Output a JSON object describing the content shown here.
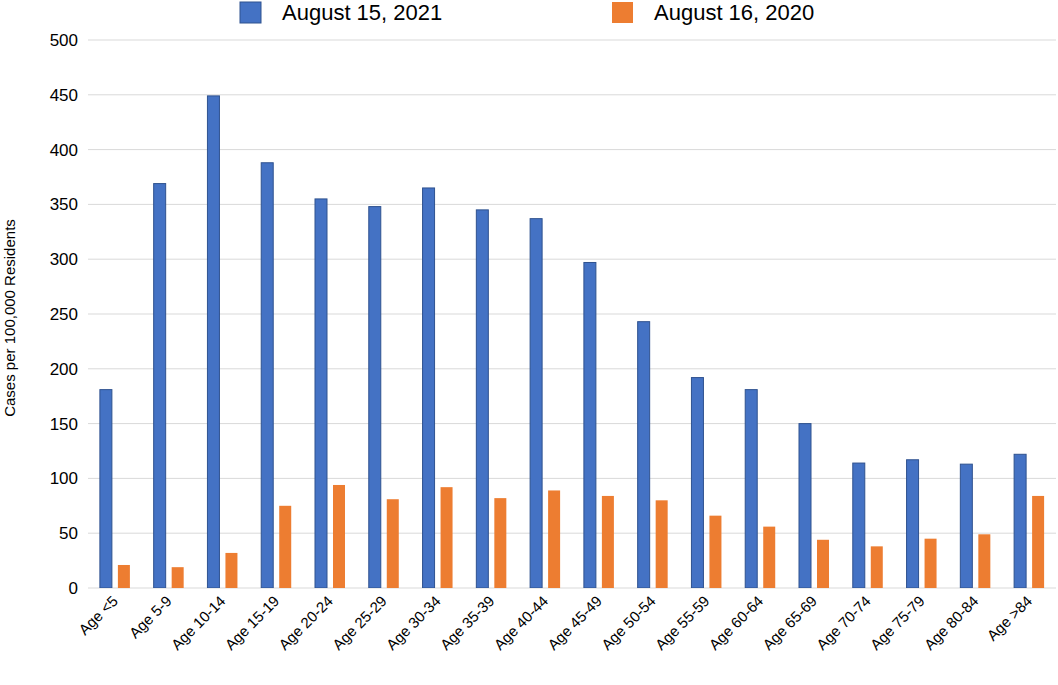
{
  "chart_data": {
    "type": "bar",
    "y_label": "Cases per 100,000 Residents",
    "categories": [
      "Age <5",
      "Age 5-9",
      "Age 10-14",
      "Age 15-19",
      "Age 20-24",
      "Age 25-29",
      "Age 30-34",
      "Age 35-39",
      "Age 40-44",
      "Age 45-49",
      "Age 50-54",
      "Age 55-59",
      "Age 60-64",
      "Age 65-69",
      "Age 70-74",
      "Age 75-79",
      "Age 80-84",
      "Age >84"
    ],
    "series": [
      {
        "name": "August 15, 2021",
        "color": "#4472c4",
        "values": [
          181,
          369,
          449,
          388,
          355,
          348,
          365,
          345,
          337,
          297,
          243,
          192,
          181,
          150,
          114,
          117,
          113,
          122
        ]
      },
      {
        "name": "August 16, 2020",
        "color": "#ed7d31",
        "values": [
          21,
          19,
          32,
          75,
          94,
          81,
          92,
          82,
          89,
          84,
          80,
          66,
          56,
          44,
          38,
          45,
          49,
          84
        ]
      }
    ],
    "ylim": [
      0,
      500
    ],
    "yticks": [
      0,
      50,
      100,
      150,
      200,
      250,
      300,
      350,
      400,
      450,
      500
    ],
    "grid": true,
    "legend": "top"
  }
}
